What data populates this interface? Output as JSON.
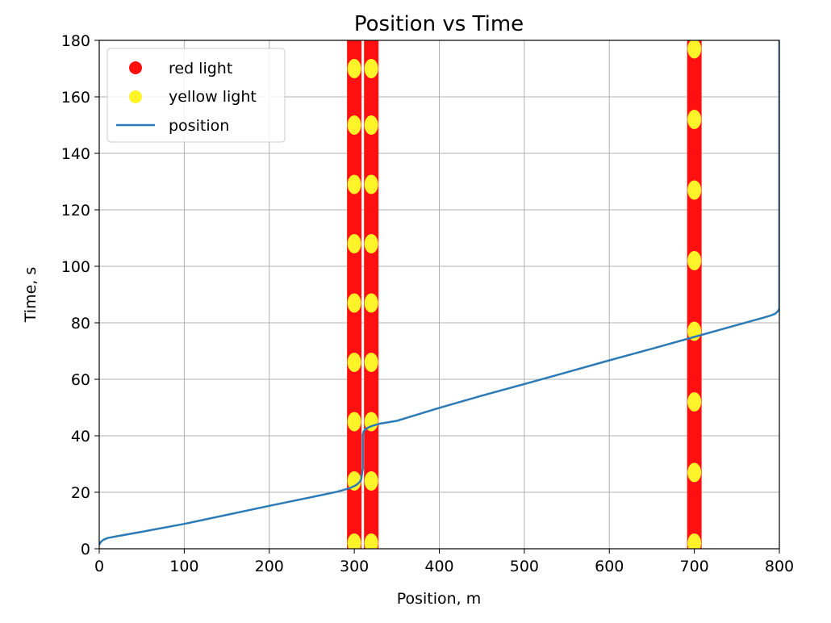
{
  "chart_data": {
    "type": "scatter",
    "title": "Position vs Time",
    "xlabel": "Position, m",
    "ylabel": "Time, s",
    "xlim": [
      0,
      800
    ],
    "ylim": [
      0,
      180
    ],
    "xticks": [
      0,
      100,
      200,
      300,
      400,
      500,
      600,
      700,
      800
    ],
    "yticks": [
      0,
      20,
      40,
      60,
      80,
      100,
      120,
      140,
      160,
      180
    ],
    "grid": true,
    "legend_position": "top-left",
    "colors": {
      "red_light": "#ff1010",
      "yellow_light": "#fff32a",
      "position": "#2d7bb6",
      "grid": "#b0b0b0"
    },
    "series": [
      {
        "name": "red light",
        "kind": "markers",
        "lights": [
          {
            "x": 300,
            "t_start": 0,
            "t_end": 180
          },
          {
            "x": 320,
            "t_start": 0,
            "t_end": 180
          },
          {
            "x": 700,
            "t_start": 0,
            "t_end": 180
          }
        ]
      },
      {
        "name": "yellow light",
        "kind": "markers",
        "points": [
          {
            "x": 300,
            "y": [
              2,
              24,
              45,
              66,
              87,
              108,
              129,
              150,
              170
            ]
          },
          {
            "x": 320,
            "y": [
              2,
              24,
              45,
              66,
              87,
              108,
              129,
              150,
              170
            ]
          },
          {
            "x": 700,
            "y": [
              2,
              27,
              52,
              77,
              102,
              127,
              152,
              177
            ]
          }
        ]
      },
      {
        "name": "position",
        "kind": "line",
        "x": [
          0,
          2,
          5,
          10,
          20,
          50,
          100,
          150,
          200,
          250,
          280,
          295,
          302,
          306,
          308,
          309,
          310,
          310,
          311,
          313,
          317,
          322,
          330,
          350,
          400,
          450,
          500,
          550,
          600,
          650,
          700,
          750,
          780,
          790,
          795,
          798,
          800,
          800,
          800
        ],
        "y": [
          1.5,
          2.5,
          3.2,
          3.8,
          4.4,
          6.0,
          8.8,
          12.0,
          15.2,
          18.3,
          20.2,
          21.5,
          22.5,
          23.5,
          24.5,
          26.5,
          28.5,
          40.5,
          41.5,
          42.3,
          43.0,
          43.6,
          44.3,
          45.3,
          49.9,
          54.2,
          58.3,
          62.5,
          66.7,
          70.8,
          75.0,
          79.2,
          81.7,
          82.6,
          83.2,
          84.0,
          85.0,
          120.0,
          180.0
        ]
      }
    ]
  }
}
